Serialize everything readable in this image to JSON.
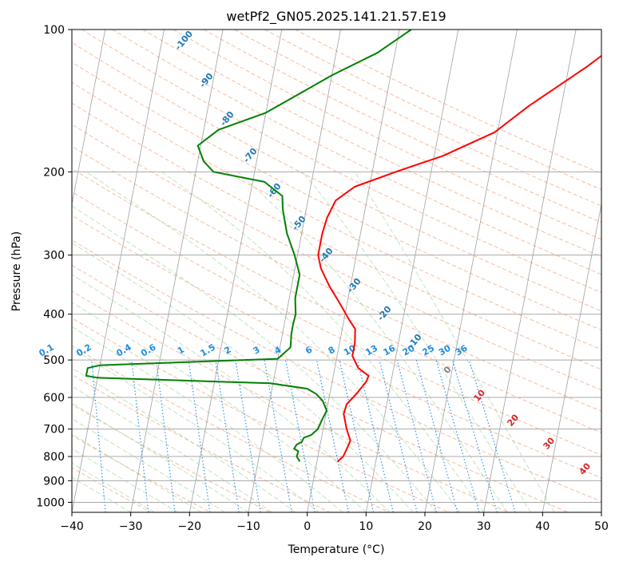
{
  "chart_data": {
    "type": "line",
    "chart_kind": "skew-t log-p",
    "title": "wetPf2_GN05.2025.141.21.57.E19",
    "xlabel": "Temperature (°C)",
    "ylabel": "Pressure (hPa)",
    "xlim": [
      -40,
      50
    ],
    "ylim": [
      1050,
      100
    ],
    "y_scale": "log",
    "grid": true,
    "x_ticks": [
      -40,
      -30,
      -20,
      -10,
      0,
      10,
      20,
      30,
      40,
      50
    ],
    "y_ticks": [
      100,
      200,
      300,
      400,
      500,
      600,
      700,
      800,
      900,
      1000
    ],
    "series": [
      {
        "color": "#ff0000",
        "points": [
          [
            3.5,
            820
          ],
          [
            4.3,
            800
          ],
          [
            4.8,
            760
          ],
          [
            5.0,
            740
          ],
          [
            4.0,
            700
          ],
          [
            3.0,
            650
          ],
          [
            3.2,
            620
          ],
          [
            4.5,
            590
          ],
          [
            5.8,
            555
          ],
          [
            6.0,
            540
          ],
          [
            4.0,
            520
          ],
          [
            2.6,
            490
          ],
          [
            2.6,
            460
          ],
          [
            2.2,
            430
          ],
          [
            0.8,
            410
          ],
          [
            -1.2,
            380
          ],
          [
            -3.5,
            350
          ],
          [
            -5.6,
            320
          ],
          [
            -6.5,
            300
          ],
          [
            -6.5,
            270
          ],
          [
            -6.2,
            250
          ],
          [
            -5.3,
            230
          ],
          [
            -2.5,
            215
          ],
          [
            4.0,
            200
          ],
          [
            11.5,
            185
          ],
          [
            19.5,
            165
          ],
          [
            24.5,
            145
          ],
          [
            33.0,
            120
          ],
          [
            36.5,
            110
          ],
          [
            39.0,
            100
          ]
        ]
      },
      {
        "color": "#008000",
        "points": [
          [
            -2.9,
            820
          ],
          [
            -3.6,
            800
          ],
          [
            -3.5,
            780
          ],
          [
            -4.3,
            770
          ],
          [
            -4.0,
            755
          ],
          [
            -3.2,
            745
          ],
          [
            -3.0,
            730
          ],
          [
            -1.8,
            720
          ],
          [
            -0.9,
            700
          ],
          [
            -0.5,
            670
          ],
          [
            0.0,
            640
          ],
          [
            -1.0,
            610
          ],
          [
            -2.3,
            590
          ],
          [
            -4.0,
            575
          ],
          [
            -10.5,
            560
          ],
          [
            -40.0,
            545
          ],
          [
            -42.0,
            540
          ],
          [
            -42.0,
            520
          ],
          [
            -40.0,
            513
          ],
          [
            -10.0,
            497
          ],
          [
            -8.2,
            470
          ],
          [
            -8.5,
            440
          ],
          [
            -8.5,
            420
          ],
          [
            -8.4,
            400
          ],
          [
            -9.0,
            370
          ],
          [
            -9.0,
            330
          ],
          [
            -10.5,
            300
          ],
          [
            -12.5,
            270
          ],
          [
            -14.0,
            240
          ],
          [
            -14.5,
            225
          ],
          [
            -18.0,
            210
          ],
          [
            -27.0,
            200
          ],
          [
            -29.0,
            190
          ],
          [
            -30.5,
            176
          ],
          [
            -27.5,
            163
          ],
          [
            -20.0,
            150
          ],
          [
            -10.0,
            125
          ],
          [
            -3.0,
            112
          ],
          [
            2.0,
            100
          ]
        ]
      }
    ],
    "dry_adiabat_labels": [
      "-100",
      "-90",
      "-80",
      "-70",
      "-60",
      "-50",
      "-40",
      "-30",
      "-20",
      "-10"
    ],
    "mixing_ratio_labels": [
      "0.1",
      "0.2",
      "0.4",
      "0.6",
      "1",
      "1.5",
      "2",
      "3",
      "4",
      "6",
      "8",
      "10",
      "13",
      "16",
      "20",
      "25",
      "30",
      "36"
    ],
    "moist_adiabat_labels": [
      "0",
      "10",
      "20",
      "30",
      "40"
    ]
  },
  "colors": {
    "temperature": "#ff0000",
    "dewpoint": "#008000",
    "dry_adiabat": "#f4a582",
    "moist_adiabat": "#a6d9a0",
    "mixing_ratio": "#1f8be0",
    "isotherm": "#808080",
    "dry_label": "#1f77b4",
    "moist_label": "#d62728"
  }
}
